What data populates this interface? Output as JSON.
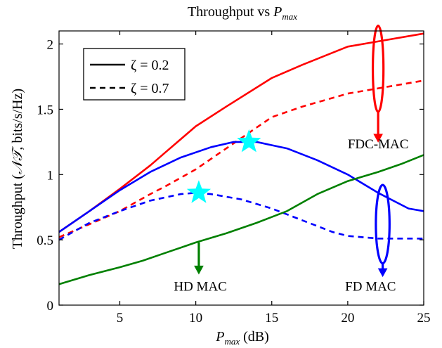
{
  "chart_data": {
    "type": "line",
    "title_prefix": "Throughput vs ",
    "title_var": "P",
    "title_sub": "max",
    "xlabel_var": "P",
    "xlabel_sub": "max",
    "xlabel_unit": " (dB)",
    "ylabel_prefix": "Throughput (",
    "ylabel_math": "𝒩𝒯",
    "ylabel_suffix": ", bits/s/Hz)",
    "xlim": [
      1,
      25
    ],
    "ylim": [
      0,
      2.1
    ],
    "xticks": [
      5,
      10,
      15,
      20,
      25
    ],
    "yticks": [
      0,
      0.5,
      1,
      1.5,
      2
    ],
    "ytick_labels": [
      "0",
      "0.5",
      "1",
      "1.5",
      "2"
    ],
    "grid": false,
    "legend": {
      "placement": "top-left",
      "entries": [
        {
          "label": "ζ = 0.2",
          "style": "solid"
        },
        {
          "label": "ζ = 0.7",
          "style": "dashed"
        }
      ]
    },
    "series": [
      {
        "group": "FDC-MAC",
        "zeta": 0.2,
        "style": "solid",
        "color": "#ff0000",
        "x": [
          1,
          3,
          5,
          7,
          8,
          10,
          12,
          15,
          17,
          20,
          22,
          25
        ],
        "y": [
          0.56,
          0.72,
          0.89,
          1.07,
          1.17,
          1.37,
          1.52,
          1.74,
          1.84,
          1.98,
          2.02,
          2.08
        ]
      },
      {
        "group": "FDC-MAC",
        "zeta": 0.7,
        "style": "dashed",
        "color": "#ff0000",
        "x": [
          1,
          3,
          5,
          7,
          8,
          10,
          11,
          13,
          15,
          17,
          20,
          22,
          25
        ],
        "y": [
          0.52,
          0.62,
          0.72,
          0.85,
          0.91,
          1.04,
          1.12,
          1.28,
          1.44,
          1.52,
          1.62,
          1.66,
          1.72
        ]
      },
      {
        "group": "FD MAC",
        "zeta": 0.2,
        "style": "solid",
        "color": "#0000ff",
        "x": [
          1,
          3,
          5,
          7,
          9,
          11,
          12.5,
          14,
          16,
          18,
          20,
          22,
          24,
          25
        ],
        "y": [
          0.56,
          0.72,
          0.88,
          1.02,
          1.13,
          1.21,
          1.25,
          1.25,
          1.2,
          1.11,
          1.0,
          0.86,
          0.74,
          0.72
        ]
      },
      {
        "group": "FD MAC",
        "zeta": 0.7,
        "style": "dashed",
        "color": "#0000ff",
        "x": [
          1,
          3,
          5,
          7,
          9,
          10,
          11,
          13,
          15,
          17,
          19,
          20,
          22,
          25
        ],
        "y": [
          0.5,
          0.63,
          0.72,
          0.8,
          0.85,
          0.86,
          0.85,
          0.81,
          0.74,
          0.65,
          0.56,
          0.53,
          0.51,
          0.51
        ]
      },
      {
        "group": "HD MAC",
        "zeta": 0.2,
        "style": "solid",
        "color": "#008000",
        "x": [
          1,
          3,
          5,
          6.5,
          8,
          10,
          12,
          14,
          16,
          18,
          20,
          22,
          23.5,
          25
        ],
        "y": [
          0.16,
          0.23,
          0.29,
          0.34,
          0.4,
          0.48,
          0.55,
          0.63,
          0.72,
          0.85,
          0.95,
          1.02,
          1.08,
          1.15
        ]
      }
    ],
    "stars": [
      {
        "x": 13.5,
        "y": 1.25,
        "color": "#00ffff"
      },
      {
        "x": 10.2,
        "y": 0.86,
        "color": "#00ffff"
      }
    ],
    "annotations": [
      {
        "label": "FDC-MAC",
        "color": "#ff0000",
        "ellipse": {
          "cx": 22,
          "cy": 1.81,
          "rx": 0.35,
          "ry": 0.33
        },
        "arrow_from": {
          "x": 22,
          "y": 1.48
        },
        "arrow_to": {
          "x": 22,
          "y": 1.25
        },
        "text_at": {
          "x": 22,
          "y": 1.2
        }
      },
      {
        "label": "FD MAC",
        "color": "#0000ff",
        "ellipse": {
          "cx": 22.3,
          "cy": 0.62,
          "rx": 0.45,
          "ry": 0.3
        },
        "arrow_from": {
          "x": 22.3,
          "y": 0.32
        },
        "arrow_to": {
          "x": 22.3,
          "y": 0.22
        },
        "text_at": {
          "x": 21.5,
          "y": 0.11
        }
      },
      {
        "label": "HD MAC",
        "color": "#008000",
        "ellipse": null,
        "arrow_from": {
          "x": 10.2,
          "y": 0.48
        },
        "arrow_to": {
          "x": 10.2,
          "y": 0.24
        },
        "text_at": {
          "x": 10.3,
          "y": 0.11
        }
      }
    ]
  }
}
